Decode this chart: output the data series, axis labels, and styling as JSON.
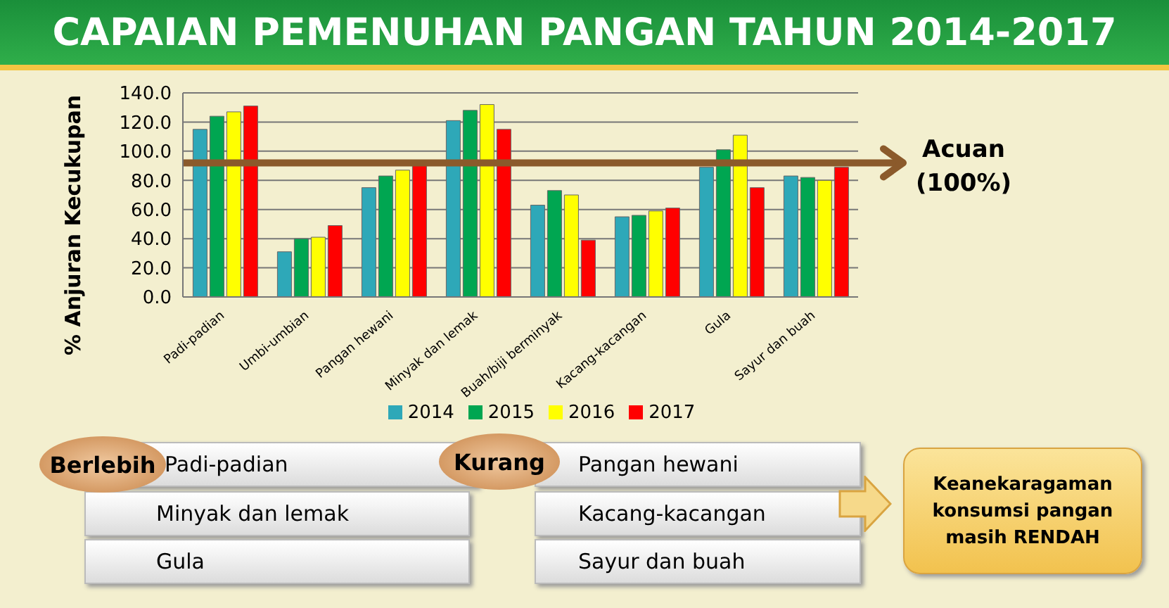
{
  "chart_data": {
    "type": "bar",
    "title": "CAPAIAN PEMENUHAN PANGAN TAHUN 2014-2017",
    "ylabel": "% Anjuran Kecukupan",
    "categories": [
      "Padi-padian",
      "Umbi-umbian",
      "Pangan hewani",
      "Minyak dan lemak",
      "Buah/biji berminyak",
      "Kacang-kacangan",
      "Gula",
      "Sayur dan buah"
    ],
    "series": [
      {
        "name": "2014",
        "color": "#2ea8b8",
        "values": [
          115,
          31,
          75,
          121,
          63,
          55,
          89,
          83
        ]
      },
      {
        "name": "2015",
        "color": "#00a651",
        "values": [
          124,
          40,
          83,
          128,
          73,
          56,
          101,
          82
        ]
      },
      {
        "name": "2016",
        "color": "#ffff00",
        "values": [
          127,
          41,
          87,
          132,
          70,
          59,
          111,
          80
        ]
      },
      {
        "name": "2017",
        "color": "#ff0000",
        "values": [
          131,
          49,
          91,
          115,
          39,
          61,
          75,
          89
        ]
      }
    ],
    "ylim": [
      0,
      140
    ],
    "yticks": [
      {
        "value": 0,
        "label": "0.0"
      },
      {
        "value": 20,
        "label": "20.0"
      },
      {
        "value": 40,
        "label": "40.0"
      },
      {
        "value": 60,
        "label": "60.0"
      },
      {
        "value": 80,
        "label": "80.0"
      },
      {
        "value": 100,
        "label": "100.0"
      },
      {
        "value": 120,
        "label": "120.0"
      },
      {
        "value": 140,
        "label": "140.0"
      }
    ],
    "grid": "y",
    "legend": "bottom",
    "ref_lines": [
      {
        "axis": "y",
        "value": 92,
        "label": "Acuan (100%)",
        "color": "#8b5a2b"
      }
    ],
    "annotations": [
      "Berlebih",
      "Padi-padian",
      "Minyak dan lemak",
      "Gula",
      "Kurang",
      "Pangan hewani",
      "Kacang-kacangan",
      "Sayur dan buah",
      "Keanekaragaman konsumsi pangan masih RENDAH"
    ]
  }
}
